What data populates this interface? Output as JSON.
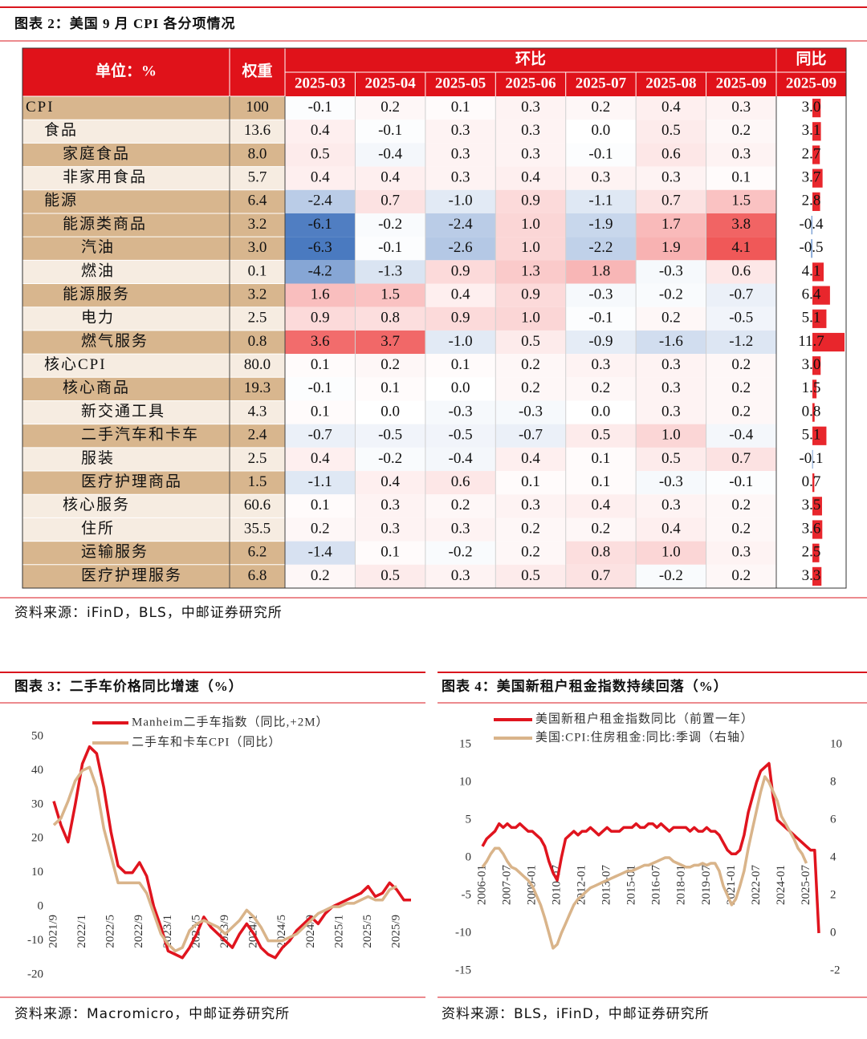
{
  "figure2": {
    "title": "图表 2：美国 9 月 CPI 各分项情况",
    "header": {
      "unit": "单位：%",
      "weight": "权重",
      "mom": "环比",
      "yoy": "同比",
      "months": [
        "2025-03",
        "2025-04",
        "2025-05",
        "2025-06",
        "2025-07",
        "2025-08",
        "2025-09"
      ],
      "yoy_month": "2025-09"
    },
    "rows": [
      {
        "name": "CPI",
        "weight": "100",
        "mom": [
          "-0.1",
          "0.2",
          "0.1",
          "0.3",
          "0.2",
          "0.4",
          "0.3"
        ],
        "yoy": "3.0"
      },
      {
        "name": "食品",
        "weight": "13.6",
        "mom": [
          "0.4",
          "-0.1",
          "0.3",
          "0.3",
          "0.0",
          "0.5",
          "0.2"
        ],
        "yoy": "3.1"
      },
      {
        "name": "家庭食品",
        "weight": "8.0",
        "mom": [
          "0.5",
          "-0.4",
          "0.3",
          "0.3",
          "-0.1",
          "0.6",
          "0.3"
        ],
        "yoy": "2.7"
      },
      {
        "name": "非家用食品",
        "weight": "5.7",
        "mom": [
          "0.4",
          "0.4",
          "0.3",
          "0.4",
          "0.3",
          "0.3",
          "0.1"
        ],
        "yoy": "3.7"
      },
      {
        "name": "能源",
        "weight": "6.4",
        "mom": [
          "-2.4",
          "0.7",
          "-1.0",
          "0.9",
          "-1.1",
          "0.7",
          "1.5"
        ],
        "yoy": "2.8"
      },
      {
        "name": "能源类商品",
        "weight": "3.2",
        "mom": [
          "-6.1",
          "-0.2",
          "-2.4",
          "1.0",
          "-1.9",
          "1.7",
          "3.8"
        ],
        "yoy": "-0.4"
      },
      {
        "name": "汽油",
        "weight": "3.0",
        "mom": [
          "-6.3",
          "-0.1",
          "-2.6",
          "1.0",
          "-2.2",
          "1.9",
          "4.1"
        ],
        "yoy": "-0.5"
      },
      {
        "name": "燃油",
        "weight": "0.1",
        "mom": [
          "-4.2",
          "-1.3",
          "0.9",
          "1.3",
          "1.8",
          "-0.3",
          "0.6"
        ],
        "yoy": "4.1"
      },
      {
        "name": "能源服务",
        "weight": "3.2",
        "mom": [
          "1.6",
          "1.5",
          "0.4",
          "0.9",
          "-0.3",
          "-0.2",
          "-0.7"
        ],
        "yoy": "6.4"
      },
      {
        "name": "电力",
        "weight": "2.5",
        "mom": [
          "0.9",
          "0.8",
          "0.9",
          "1.0",
          "-0.1",
          "0.2",
          "-0.5"
        ],
        "yoy": "5.1"
      },
      {
        "name": "燃气服务",
        "weight": "0.8",
        "mom": [
          "3.6",
          "3.7",
          "-1.0",
          "0.5",
          "-0.9",
          "-1.6",
          "-1.2"
        ],
        "yoy": "11.7"
      },
      {
        "name": "核心CPI",
        "weight": "80.0",
        "mom": [
          "0.1",
          "0.2",
          "0.1",
          "0.2",
          "0.3",
          "0.3",
          "0.2"
        ],
        "yoy": "3.0"
      },
      {
        "name": "核心商品",
        "weight": "19.3",
        "mom": [
          "-0.1",
          "0.1",
          "0.0",
          "0.2",
          "0.2",
          "0.3",
          "0.2"
        ],
        "yoy": "1.5"
      },
      {
        "name": "新交通工具",
        "weight": "4.3",
        "mom": [
          "0.1",
          "0.0",
          "-0.3",
          "-0.3",
          "0.0",
          "0.3",
          "0.2"
        ],
        "yoy": "0.8"
      },
      {
        "name": "二手汽车和卡车",
        "weight": "2.4",
        "mom": [
          "-0.7",
          "-0.5",
          "-0.5",
          "-0.7",
          "0.5",
          "1.0",
          "-0.4"
        ],
        "yoy": "5.1"
      },
      {
        "name": "服装",
        "weight": "2.5",
        "mom": [
          "0.4",
          "-0.2",
          "-0.4",
          "0.4",
          "0.1",
          "0.5",
          "0.7"
        ],
        "yoy": "-0.1"
      },
      {
        "name": "医疗护理商品",
        "weight": "1.5",
        "mom": [
          "-1.1",
          "0.4",
          "0.6",
          "0.1",
          "0.1",
          "-0.3",
          "-0.1"
        ],
        "yoy": "0.7"
      },
      {
        "name": "核心服务",
        "weight": "60.6",
        "mom": [
          "0.1",
          "0.3",
          "0.2",
          "0.3",
          "0.4",
          "0.3",
          "0.2"
        ],
        "yoy": "3.5"
      },
      {
        "name": "住所",
        "weight": "35.5",
        "mom": [
          "0.2",
          "0.3",
          "0.3",
          "0.2",
          "0.2",
          "0.4",
          "0.2"
        ],
        "yoy": "3.6"
      },
      {
        "name": "运输服务",
        "weight": "6.2",
        "mom": [
          "-1.4",
          "0.1",
          "-0.2",
          "0.2",
          "0.8",
          "1.0",
          "0.3"
        ],
        "yoy": "2.5"
      },
      {
        "name": "医疗护理服务",
        "weight": "6.8",
        "mom": [
          "0.2",
          "0.5",
          "0.3",
          "0.5",
          "0.7",
          "-0.2",
          "0.2"
        ],
        "yoy": "3.3"
      }
    ],
    "source": "资料来源：iFinD，BLS，中邮证券研究所"
  },
  "chart_data": [
    {
      "type": "line",
      "title": "图表 3：二手车价格同比增速（%）",
      "categories": [
        "2021/9",
        null,
        null,
        null,
        "2022/1",
        null,
        null,
        null,
        "2022/5",
        null,
        null,
        null,
        "2022/9",
        null,
        null,
        null,
        "2023/1",
        null,
        null,
        null,
        "2023/5",
        null,
        null,
        null,
        "2023/9",
        null,
        null,
        null,
        "2024/1",
        null,
        null,
        null,
        "2024/5",
        null,
        null,
        null,
        "2024/9",
        null,
        null,
        null,
        "2025/1",
        null,
        null,
        null,
        "2025/5",
        null,
        null,
        null,
        "2025/9",
        null,
        null
      ],
      "series": [
        {
          "name": "Manheim二手车指数（同比,+2M）",
          "color": "#e0141e",
          "values": [
            31,
            24,
            19,
            30,
            42,
            47,
            45,
            35,
            22,
            12,
            10,
            10,
            13,
            9,
            0,
            -6,
            -13,
            -14,
            -15,
            -12,
            -8,
            -3,
            -6,
            -8,
            -10,
            -12,
            -8,
            -5,
            -8,
            -12,
            -14,
            -15,
            -12,
            -10,
            -7,
            -5,
            -3,
            -5,
            -2,
            0,
            1,
            2,
            3,
            4,
            6,
            3,
            4,
            7,
            5,
            2,
            2
          ]
        },
        {
          "name": "二手车和卡车CPI（同比）",
          "color": "#d9b48a",
          "values": [
            24,
            26,
            31,
            37,
            40,
            41,
            35,
            23,
            15,
            7,
            7,
            7,
            7,
            4,
            -2,
            -8,
            -11,
            -13,
            -12,
            -7,
            -5,
            -4,
            -5,
            -6,
            -8,
            -6,
            -4,
            -1,
            -3,
            -6,
            -10,
            -10,
            -10,
            -9,
            -8,
            -6,
            -4,
            -2,
            -1,
            0,
            0,
            1,
            1,
            2,
            3,
            2,
            2,
            5,
            6,
            null,
            null
          ]
        }
      ],
      "ylim": [
        -20,
        50
      ],
      "yticks": [
        -20,
        -10,
        0,
        10,
        20,
        30,
        40,
        50
      ],
      "source": "资料来源：Macromicro，中邮证券研究所"
    },
    {
      "type": "line",
      "title": "图表 4：美国新租户租金指数持续回落（%）",
      "categories": [
        "2006-01",
        null,
        null,
        null,
        null,
        null,
        "2007-07",
        null,
        null,
        null,
        null,
        null,
        "2009-01",
        null,
        null,
        null,
        null,
        null,
        "2010-07",
        null,
        null,
        null,
        null,
        null,
        "2012-01",
        null,
        null,
        null,
        null,
        null,
        "2013-07",
        null,
        null,
        null,
        null,
        null,
        "2015-01",
        null,
        null,
        null,
        null,
        null,
        "2016-07",
        null,
        null,
        null,
        null,
        null,
        "2018-01",
        null,
        null,
        null,
        null,
        null,
        "2019-07",
        null,
        null,
        null,
        null,
        null,
        "2021-01",
        null,
        null,
        null,
        null,
        null,
        "2022-07",
        null,
        null,
        null,
        null,
        null,
        "2024-01",
        null,
        null,
        null,
        null,
        null,
        "2025-07",
        null,
        null,
        null
      ],
      "series": [
        {
          "name": "美国新租户租金指数同比（前置一年）",
          "color": "#e0141e",
          "values": [
            1.5,
            2.5,
            3,
            3.5,
            4.5,
            4,
            4.5,
            4,
            4,
            4.5,
            4,
            3.5,
            3.5,
            3,
            2.5,
            1.5,
            -0.5,
            -2,
            -3,
            0,
            2.5,
            3,
            3.5,
            3,
            3.5,
            3.5,
            4,
            3.5,
            3,
            3.5,
            4,
            3.5,
            3.5,
            3.5,
            4,
            4,
            4,
            4.5,
            4,
            4,
            4.5,
            4.5,
            4,
            4.5,
            4,
            3.5,
            4,
            4,
            4,
            4,
            3.5,
            4,
            3.5,
            3.5,
            4,
            3.5,
            3.5,
            3,
            2,
            1,
            0.5,
            0.5,
            1,
            3,
            6,
            8,
            10,
            11.5,
            12,
            12.5,
            8,
            5,
            4.5,
            4,
            3.5,
            3,
            2.5,
            2,
            1.5,
            1,
            1,
            -10
          ]
        },
        {
          "name": "美国:CPI:住房租金:同比:季调（右轴）",
          "color": "#d9b48a",
          "axis": "y2",
          "values": [
            3.5,
            3.8,
            4.2,
            4.5,
            4.5,
            4.2,
            3.8,
            3.5,
            3.4,
            3.2,
            3.0,
            2.8,
            2.5,
            2.0,
            1.5,
            0.8,
            0,
            -0.8,
            -0.6,
            0,
            0.5,
            1.0,
            1.5,
            1.8,
            2.0,
            2.2,
            2.4,
            2.5,
            2.6,
            2.7,
            2.8,
            2.9,
            3.0,
            3.1,
            3.2,
            3.3,
            3.3,
            3.4,
            3.5,
            3.6,
            3.6,
            3.7,
            3.8,
            3.9,
            4.0,
            4.0,
            3.8,
            3.7,
            3.6,
            3.5,
            3.5,
            3.6,
            3.6,
            3.7,
            3.6,
            3.7,
            3.7,
            3.3,
            2.5,
            2.0,
            1.5,
            1.8,
            2.5,
            3.3,
            4.5,
            5.5,
            6.5,
            7.5,
            8.3,
            8.0,
            7.5,
            7.0,
            6.2,
            5.8,
            5.4,
            5.0,
            4.5,
            4.2,
            3.7,
            null,
            null,
            null
          ]
        }
      ],
      "ylim": [
        -15,
        15
      ],
      "yticks": [
        -15,
        -10,
        -5,
        0,
        5,
        10,
        15
      ],
      "y2lim": [
        -2,
        10
      ],
      "y2ticks": [
        -2,
        0,
        2,
        4,
        6,
        8,
        10
      ],
      "source": "资料来源：BLS，iFinD，中邮证券研究所"
    }
  ]
}
